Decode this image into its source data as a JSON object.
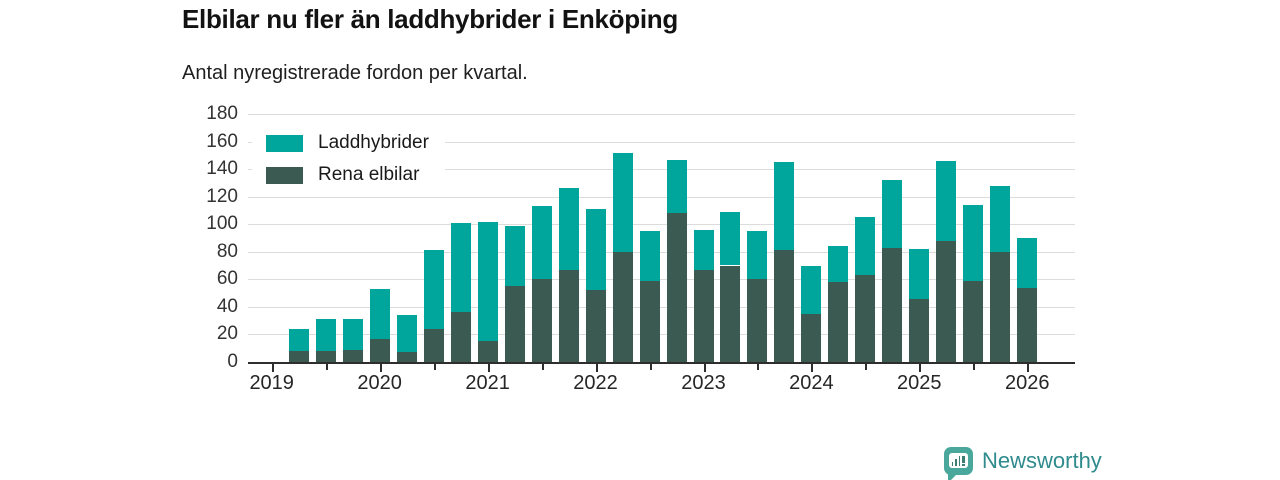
{
  "branding": {
    "logo_text": "Newsworthy"
  },
  "chart_data": {
    "type": "bar",
    "stacked": true,
    "title": "Elbilar nu fler än laddhybrider i Enköping",
    "subtitle": "Antal nyregistrerade fordon per kvartal.",
    "grid": "horizontal",
    "legend_position": "top-left",
    "ylim": [
      0,
      180
    ],
    "yticks": [
      0,
      20,
      40,
      60,
      80,
      100,
      120,
      140,
      160,
      180
    ],
    "year_labels": [
      "2019",
      "2020",
      "2021",
      "2022",
      "2023",
      "2024",
      "2025",
      "2026"
    ],
    "x": [
      "2019 Q2",
      "2019 Q3",
      "2019 Q4",
      "2020 Q1",
      "2020 Q2",
      "2020 Q3",
      "2020 Q4",
      "2021 Q1",
      "2021 Q2",
      "2021 Q3",
      "2021 Q4",
      "2022 Q1",
      "2022 Q2",
      "2022 Q3",
      "2022 Q4",
      "2023 Q1",
      "2023 Q2",
      "2023 Q3",
      "2023 Q4",
      "2024 Q1",
      "2024 Q2",
      "2024 Q3",
      "2024 Q4",
      "2025 Q1",
      "2025 Q2",
      "2025 Q3",
      "2025 Q4",
      "2026 Q1"
    ],
    "series": [
      {
        "name": "Laddhybrider",
        "color": "#00a59c",
        "values": [
          16,
          23,
          22,
          36,
          27,
          57,
          65,
          87,
          44,
          53,
          59,
          59,
          72,
          36,
          39,
          29,
          39,
          35,
          64,
          35,
          26,
          42,
          49,
          36,
          58,
          55,
          48,
          36
        ]
      },
      {
        "name": "Rena elbilar",
        "color": "#3b5a51",
        "values": [
          8,
          8,
          9,
          17,
          7,
          24,
          36,
          15,
          55,
          60,
          67,
          52,
          80,
          59,
          108,
          67,
          70,
          60,
          81,
          35,
          58,
          63,
          83,
          46,
          88,
          59,
          80,
          54
        ]
      }
    ]
  }
}
